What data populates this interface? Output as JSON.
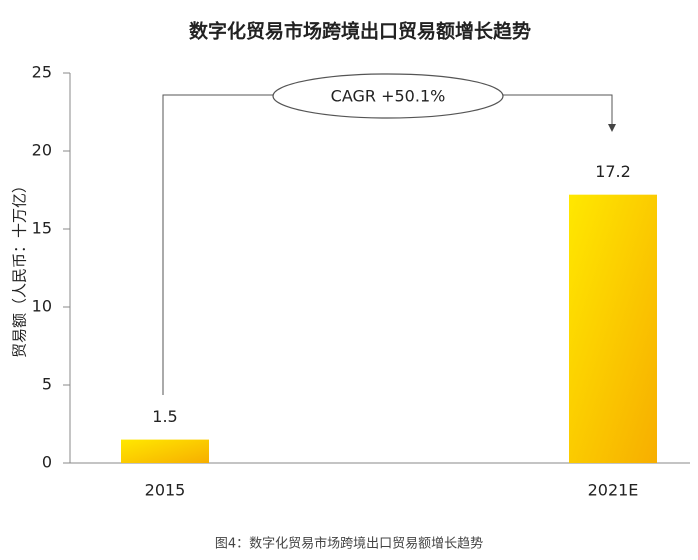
{
  "chart_data": {
    "type": "bar",
    "title": "数字化贸易市场跨境出口贸易额增长趋势",
    "ylabel": "贸易额（人民币：十万亿）",
    "categories": [
      "2015",
      "2021E"
    ],
    "values": [
      1.5,
      17.2
    ],
    "gradient": [
      "#ffe800",
      "#f7ae00"
    ],
    "ylim": [
      0,
      25
    ],
    "yticks": [
      0,
      5,
      10,
      15,
      20,
      25
    ],
    "grid": false,
    "annotation": "CAGR +50.1%",
    "caption": "图4：数字化贸易市场跨境出口贸易额增长趋势"
  }
}
